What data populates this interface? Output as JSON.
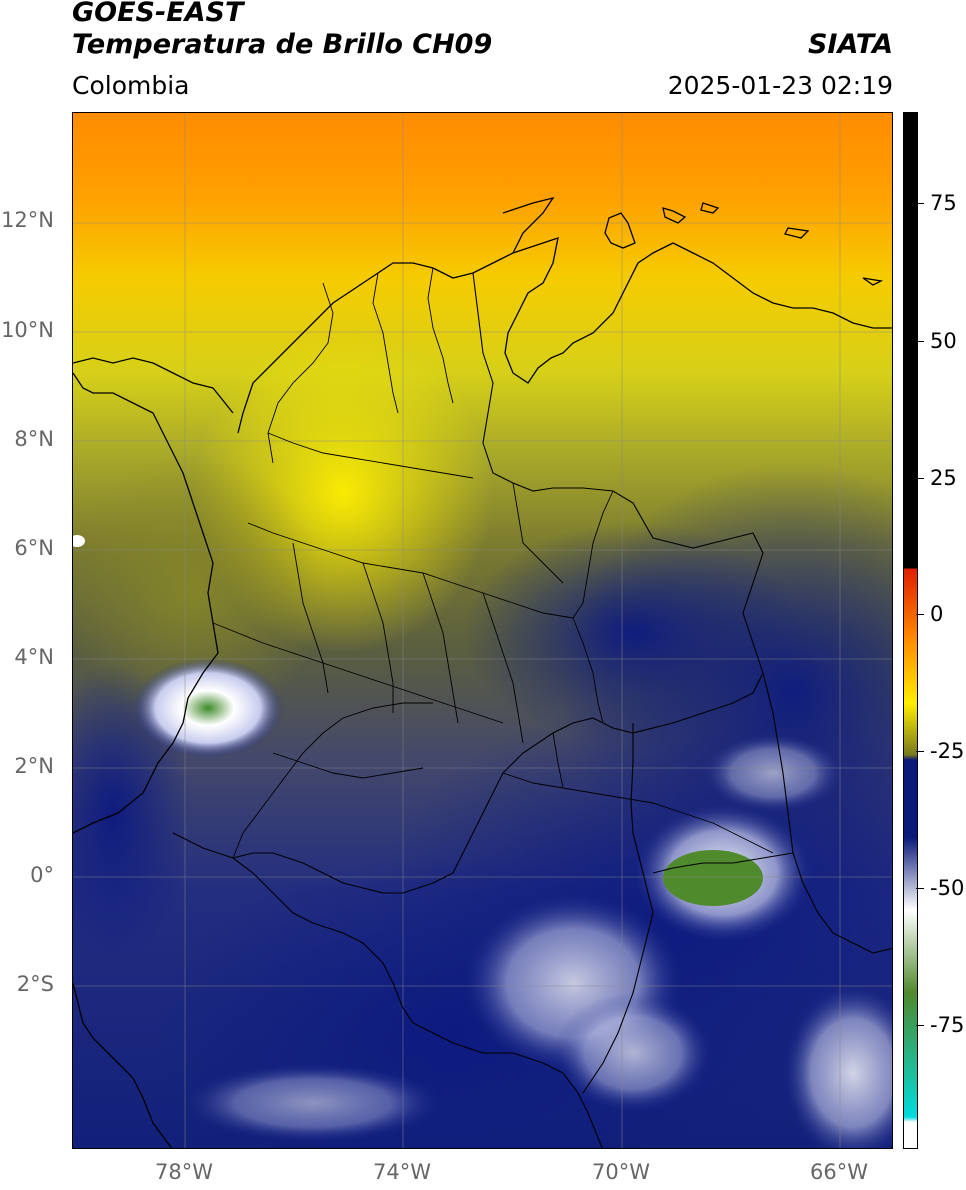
{
  "header": {
    "title_line1": "GOES-EAST",
    "title_line2": "Temperatura de Brillo CH09",
    "org": "SIATA",
    "region": "Colombia",
    "datetime": "2025-01-23 02:19"
  },
  "map": {
    "lat_labels": [
      "12°N",
      "10°N",
      "8°N",
      "6°N",
      "4°N",
      "2°N",
      "0°",
      "2°S"
    ],
    "lon_labels": [
      "78°W",
      "74°W",
      "70°W",
      "66°W"
    ],
    "features": [
      "brightness-temperature-field",
      "coastlines",
      "country-borders",
      "department-borders",
      "lat-lon-gridlines"
    ]
  },
  "colorbar": {
    "tick_labels": [
      "75",
      "50",
      "25",
      "0",
      "-25",
      "-50",
      "-75"
    ],
    "colors": {
      "warm_black": "#000000",
      "red": "#e01e00",
      "orange": "#ff8c00",
      "yellow": "#ffee00",
      "olive": "#7a7a1e",
      "navy": "#0a1a7a",
      "white": "#ffffff",
      "green": "#4f8a2c",
      "cyan": "#00dcdc"
    }
  }
}
